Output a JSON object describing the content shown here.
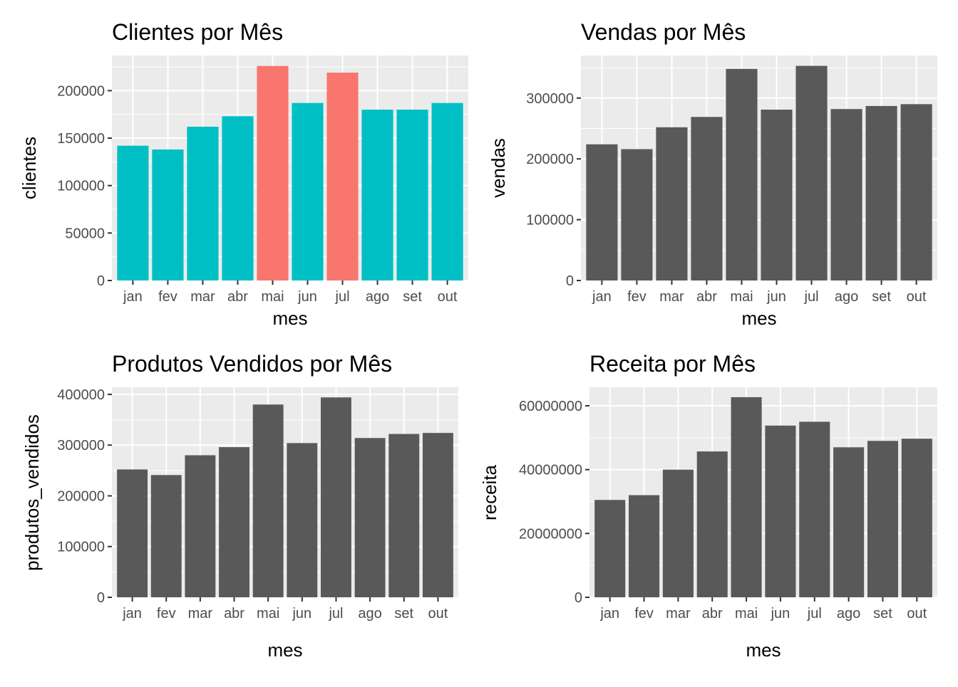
{
  "colors": {
    "panel_bg": "#EBEBEB",
    "grid": "#FFFFFF",
    "bar_default": "#595959",
    "highlight_true": "#F8766D",
    "highlight_false": "#00BFC4",
    "tick_text": "#4D4D4D",
    "axis_text": "#000000"
  },
  "chart_data": [
    {
      "type": "bar",
      "title": "Clientes por Mês",
      "xlabel": "mes",
      "ylabel": "clientes",
      "categories": [
        "jan",
        "fev",
        "mar",
        "abr",
        "mai",
        "jun",
        "jul",
        "ago",
        "set",
        "out"
      ],
      "values": [
        142000,
        138000,
        162000,
        173000,
        226000,
        187000,
        219000,
        180000,
        180000,
        187000
      ],
      "highlight": [
        false,
        false,
        false,
        false,
        true,
        false,
        true,
        false,
        false,
        false
      ],
      "yticks": [
        0,
        50000,
        100000,
        150000,
        200000
      ],
      "ytick_labels": [
        "0",
        "50000",
        "100000",
        "150000",
        "200000"
      ],
      "ylim": [
        0,
        237000
      ],
      "grid": true
    },
    {
      "type": "bar",
      "title": "Vendas por Mês",
      "xlabel": "mes",
      "ylabel": "vendas",
      "categories": [
        "jan",
        "fev",
        "mar",
        "abr",
        "mai",
        "jun",
        "jul",
        "ago",
        "set",
        "out"
      ],
      "values": [
        224000,
        216000,
        252000,
        269000,
        348000,
        281000,
        353000,
        282000,
        287000,
        290000
      ],
      "yticks": [
        0,
        100000,
        200000,
        300000
      ],
      "ytick_labels": [
        "0",
        "100000",
        "200000",
        "300000"
      ],
      "ylim": [
        0,
        370000
      ],
      "grid": true
    },
    {
      "type": "bar",
      "title": "Produtos Vendidos por Mês",
      "xlabel": "mes",
      "ylabel": "produtos_vendidos",
      "categories": [
        "jan",
        "fev",
        "mar",
        "abr",
        "mai",
        "jun",
        "jul",
        "ago",
        "set",
        "out"
      ],
      "values": [
        252000,
        241000,
        280000,
        296000,
        380000,
        304000,
        394000,
        314000,
        322000,
        324000
      ],
      "yticks": [
        0,
        100000,
        200000,
        300000,
        400000
      ],
      "ytick_labels": [
        "0",
        "100000",
        "200000",
        "300000",
        "400000"
      ],
      "ylim": [
        0,
        414000
      ],
      "grid": true
    },
    {
      "type": "bar",
      "title": "Receita por Mês",
      "xlabel": "mes",
      "ylabel": "receita",
      "categories": [
        "jan",
        "fev",
        "mar",
        "abr",
        "mai",
        "jun",
        "jul",
        "ago",
        "set",
        "out"
      ],
      "values": [
        30500000,
        32000000,
        40000000,
        45700000,
        62700000,
        53800000,
        55000000,
        47000000,
        49000000,
        49700000
      ],
      "yticks": [
        0,
        20000000,
        40000000,
        60000000
      ],
      "ytick_labels": [
        "0",
        "20000000",
        "40000000",
        "60000000"
      ],
      "ylim": [
        0,
        65800000
      ],
      "grid": true
    }
  ]
}
